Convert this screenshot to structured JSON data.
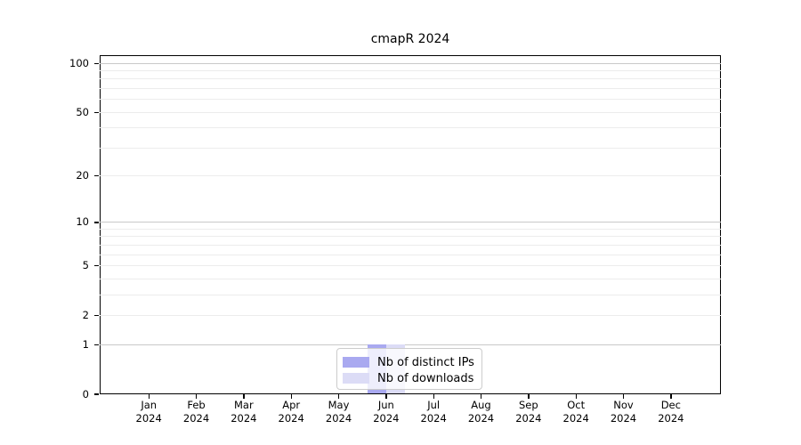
{
  "title": "cmapR 2024",
  "chart_data": {
    "type": "bar",
    "title": "cmapR 2024",
    "x_months": [
      "Jan",
      "Feb",
      "Mar",
      "Apr",
      "May",
      "Jun",
      "Jul",
      "Aug",
      "Sep",
      "Oct",
      "Nov",
      "Dec"
    ],
    "x_year": "2024",
    "series": [
      {
        "name": "Nb of distinct IPs",
        "color": "#a9a9f0",
        "values": [
          0,
          0,
          0,
          0,
          0,
          1,
          0,
          0,
          0,
          0,
          0,
          0
        ]
      },
      {
        "name": "Nb of downloads",
        "color": "#dcdcf6",
        "values": [
          0,
          0,
          0,
          0,
          0,
          1,
          0,
          0,
          0,
          0,
          0,
          0
        ]
      }
    ],
    "y_scale": "log1p",
    "y_tick_values": [
      0,
      1,
      2,
      5,
      10,
      20,
      50,
      100
    ],
    "y_major_gridlines": [
      1,
      10,
      100
    ],
    "y_minor_gridlines": [
      2,
      3,
      4,
      5,
      6,
      7,
      8,
      9,
      20,
      30,
      40,
      50,
      60,
      70,
      80,
      90
    ],
    "ylim": [
      0,
      112
    ],
    "grid": "horizontal",
    "legend_position": "lower center"
  },
  "colors": {
    "axis": "#000000",
    "major_grid": "#c9c9c9",
    "minor_grid": "#ececec",
    "background": "#ffffff"
  }
}
